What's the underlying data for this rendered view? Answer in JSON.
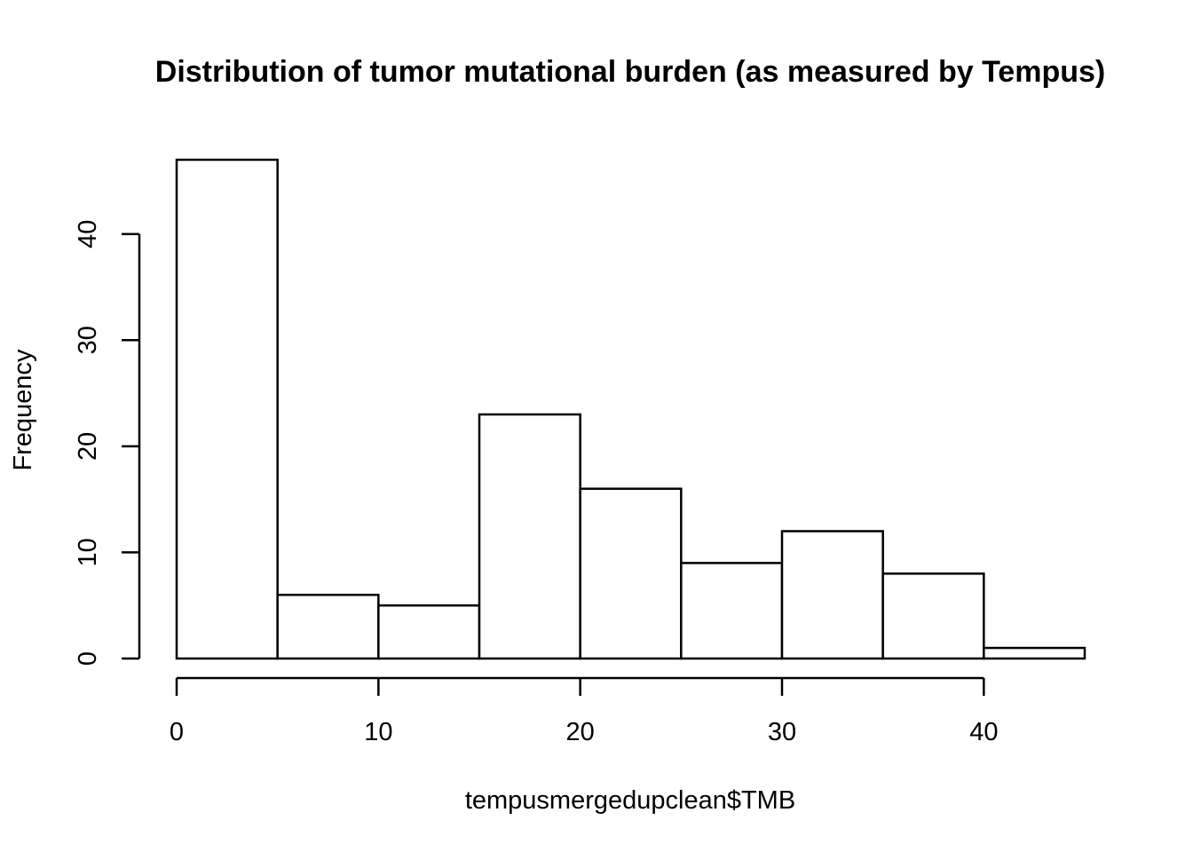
{
  "chart_data": {
    "type": "bar",
    "title": "Distribution of tumor mutational burden (as measured by Tempus)",
    "xlabel": "tempusmergedupclean$TMB",
    "ylabel": "Frequency",
    "bins": [
      {
        "start": 0,
        "end": 5,
        "count": 47
      },
      {
        "start": 5,
        "end": 10,
        "count": 6
      },
      {
        "start": 10,
        "end": 15,
        "count": 5
      },
      {
        "start": 15,
        "end": 20,
        "count": 23
      },
      {
        "start": 20,
        "end": 25,
        "count": 16
      },
      {
        "start": 25,
        "end": 30,
        "count": 9
      },
      {
        "start": 30,
        "end": 35,
        "count": 12
      },
      {
        "start": 35,
        "end": 40,
        "count": 8
      },
      {
        "start": 40,
        "end": 45,
        "count": 1
      }
    ],
    "xlim": [
      0,
      45
    ],
    "ylim": [
      0,
      47
    ],
    "x_ticks": [
      "0",
      "10",
      "20",
      "30",
      "40"
    ],
    "y_ticks": [
      "0",
      "10",
      "20",
      "30",
      "40"
    ],
    "grid": false,
    "colors": {
      "bar_fill": "#ffffff",
      "bar_stroke": "#000000"
    }
  }
}
